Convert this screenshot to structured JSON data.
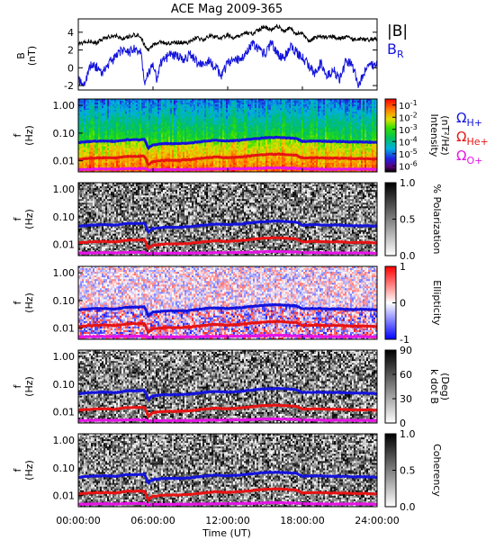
{
  "chart_data": {
    "type": "spectrogram",
    "title": "ACE Mag 2009-365",
    "xlabel": "Time (UT)",
    "x_ticks": [
      "00:00:00",
      "06:00:00",
      "12:00:00",
      "18:00:00",
      "24:00:00"
    ],
    "x_range_hours": [
      0,
      24
    ],
    "magnetic_field": {
      "ylabel_top": "B",
      "ylabel_bottom": "(nT)",
      "ylim": [
        -2.5,
        5.5
      ],
      "y_ticks": [
        "-2",
        "0",
        "2",
        "4"
      ],
      "y_tick_values": [
        -2,
        0,
        2,
        4
      ],
      "legend": {
        "btotal": {
          "label": "|B|",
          "color": "#000000"
        },
        "br": {
          "label": "B",
          "subscript": "R",
          "color": "#1414dc"
        }
      },
      "btotal": {
        "hours": [
          0,
          0.5,
          1,
          1.5,
          2,
          2.5,
          3,
          3.5,
          4,
          4.5,
          5,
          5.3,
          5.6,
          6,
          6.5,
          7,
          7.5,
          8,
          8.5,
          9,
          9.5,
          10,
          10.5,
          11,
          11.5,
          12,
          12.5,
          13,
          13.5,
          14,
          14.5,
          15,
          15.5,
          16,
          16.5,
          17,
          17.5,
          18,
          18.5,
          19,
          19.5,
          20,
          20.5,
          21,
          21.5,
          22,
          22.5,
          23,
          23.5,
          24
        ],
        "values": [
          2.6,
          2.9,
          3.0,
          2.8,
          3.3,
          3.5,
          3.6,
          3.3,
          3.5,
          3.7,
          3.6,
          2.6,
          2.0,
          2.5,
          2.9,
          2.8,
          2.7,
          2.9,
          2.8,
          2.9,
          3.4,
          3.1,
          3.6,
          3.5,
          3.4,
          3.7,
          3.3,
          3.6,
          4.0,
          3.8,
          4.3,
          4.6,
          4.3,
          4.7,
          4.1,
          4.5,
          3.8,
          3.9,
          2.9,
          3.4,
          3.6,
          3.4,
          3.5,
          3.2,
          3.5,
          3.2,
          3.3,
          3.1,
          3.2,
          3.2
        ]
      },
      "br": {
        "hours": [
          0,
          0.3,
          0.6,
          1,
          1.5,
          2,
          2.5,
          3,
          3.5,
          4,
          4.5,
          5,
          5.3,
          5.6,
          6,
          6.3,
          6.6,
          7,
          7.5,
          8,
          8.5,
          9,
          9.5,
          10,
          10.5,
          11,
          11.5,
          12,
          12.5,
          13,
          13.5,
          14,
          14.5,
          15,
          15.5,
          16,
          16.5,
          17,
          17.5,
          18,
          18.5,
          19,
          19.5,
          20,
          20.5,
          21,
          21.5,
          22,
          22.5,
          23,
          23.5,
          24
        ],
        "values": [
          -1.2,
          -2.0,
          -1.4,
          0.4,
          0.1,
          -0.6,
          0.6,
          1.1,
          2.0,
          1.6,
          2.2,
          1.9,
          -1.6,
          -0.6,
          0.3,
          -1.3,
          0.5,
          1.0,
          1.6,
          1.2,
          0.9,
          1.5,
          0.6,
          0.2,
          0.8,
          0.0,
          -0.8,
          0.5,
          1.2,
          0.7,
          1.8,
          2.6,
          2.1,
          1.5,
          2.8,
          1.6,
          1.0,
          2.4,
          1.8,
          1.2,
          0.2,
          -0.6,
          0.6,
          -1.0,
          -0.2,
          -1.4,
          0.8,
          0.3,
          -1.9,
          -0.3,
          0.2,
          0.5
        ]
      }
    },
    "frequency_axis": {
      "ylabel_top": "f",
      "ylabel_bottom": "(Hz)",
      "y_ticks": [
        "1.00",
        "0.10",
        "0.01"
      ],
      "y_tick_values": [
        1.0,
        0.1,
        0.01
      ],
      "ylim": [
        0.004,
        1.7
      ],
      "scale": "log"
    },
    "gyrofrequency_lines": [
      {
        "label": "Ω",
        "subscript": "H+",
        "color": "#1414dc",
        "hours": [
          0,
          1,
          2,
          3,
          4,
          5,
          5.3,
          5.6,
          6,
          7,
          8,
          9,
          10,
          11,
          12,
          13,
          14,
          15,
          16,
          17,
          17.5,
          18,
          19,
          20,
          21,
          22,
          23,
          24
        ],
        "values": [
          0.046,
          0.05,
          0.052,
          0.05,
          0.058,
          0.058,
          0.06,
          0.028,
          0.038,
          0.042,
          0.042,
          0.044,
          0.05,
          0.055,
          0.052,
          0.055,
          0.062,
          0.068,
          0.07,
          0.066,
          0.064,
          0.05,
          0.052,
          0.05,
          0.05,
          0.048,
          0.048,
          0.046
        ]
      },
      {
        "label": "Ω",
        "subscript": "He+",
        "color": "#e61414",
        "hours": [
          0,
          1,
          2,
          3,
          4,
          5,
          5.3,
          5.6,
          6,
          7,
          8,
          9,
          10,
          11,
          12,
          13,
          14,
          15,
          16,
          17,
          17.5,
          18,
          19,
          20,
          21,
          22,
          23,
          24
        ],
        "values": [
          0.0115,
          0.0125,
          0.013,
          0.0125,
          0.0145,
          0.0145,
          0.015,
          0.007,
          0.0095,
          0.0105,
          0.0105,
          0.011,
          0.0125,
          0.0138,
          0.013,
          0.0138,
          0.0155,
          0.017,
          0.0175,
          0.0165,
          0.016,
          0.0125,
          0.013,
          0.0125,
          0.0125,
          0.012,
          0.012,
          0.0115
        ]
      },
      {
        "label": "Ω",
        "subscript": "O+",
        "color": "#e614e6",
        "hours": [
          0,
          1,
          2,
          3,
          4,
          5,
          5.3,
          5.6,
          6,
          7,
          8,
          9,
          10,
          11,
          12,
          13,
          14,
          15,
          16,
          17,
          17.5,
          18,
          19,
          20,
          21,
          22,
          23,
          24
        ],
        "values": [
          0.0049,
          0.005,
          0.0051,
          0.005,
          0.0052,
          0.0052,
          0.0053,
          0.0047,
          0.0048,
          0.0049,
          0.0049,
          0.0049,
          0.005,
          0.0051,
          0.0051,
          0.0052,
          0.0053,
          0.0055,
          0.0056,
          0.0054,
          0.0054,
          0.0051,
          0.0051,
          0.005,
          0.005,
          0.005,
          0.005,
          0.0049
        ]
      }
    ],
    "panels": [
      {
        "name": "intensity",
        "colormap": "rainbow",
        "colorbar_ticks_base": [
          "10",
          "10",
          "10",
          "10",
          "10",
          "10"
        ],
        "colorbar_ticks_exp": [
          "-1",
          "-2",
          "-3",
          "-4",
          "-5",
          "-6"
        ],
        "colorbar_label": "Intensity",
        "colorbar_label_2": "(nT²/Hz)",
        "colorbar_range_log": [
          -6.5,
          -0.5
        ]
      },
      {
        "name": "polarization",
        "colormap": "gray",
        "colorbar_ticks": [
          "1.0",
          "0.5",
          "0.0"
        ],
        "colorbar_tick_values": [
          1.0,
          0.5,
          0.0
        ],
        "colorbar_label": "% Polarization",
        "colorbar_range": [
          0,
          1
        ]
      },
      {
        "name": "ellipticity",
        "colormap": "bwr",
        "colorbar_ticks": [
          "1",
          "0",
          "-1"
        ],
        "colorbar_tick_values": [
          1,
          0,
          -1
        ],
        "colorbar_label": "Ellipticity",
        "colorbar_range": [
          -1,
          1
        ]
      },
      {
        "name": "k_dot_b",
        "colormap": "gray",
        "colorbar_ticks": [
          "90",
          "60",
          "30",
          "0"
        ],
        "colorbar_tick_values": [
          90,
          60,
          30,
          0
        ],
        "colorbar_label": "k dot B",
        "colorbar_label_2": "(Deg)",
        "colorbar_range": [
          0,
          90
        ]
      },
      {
        "name": "coherency",
        "colormap": "gray",
        "colorbar_ticks": [
          "1.0",
          "0.5",
          "0.0"
        ],
        "colorbar_tick_values": [
          1.0,
          0.5,
          0.0
        ],
        "colorbar_label": "Coherency",
        "colorbar_range": [
          0,
          1
        ]
      }
    ],
    "colors": {
      "h_plus": "#1414dc",
      "he_plus": "#e61414",
      "o_plus": "#e614e6",
      "btotal": "#000000",
      "br": "#1414dc"
    }
  }
}
